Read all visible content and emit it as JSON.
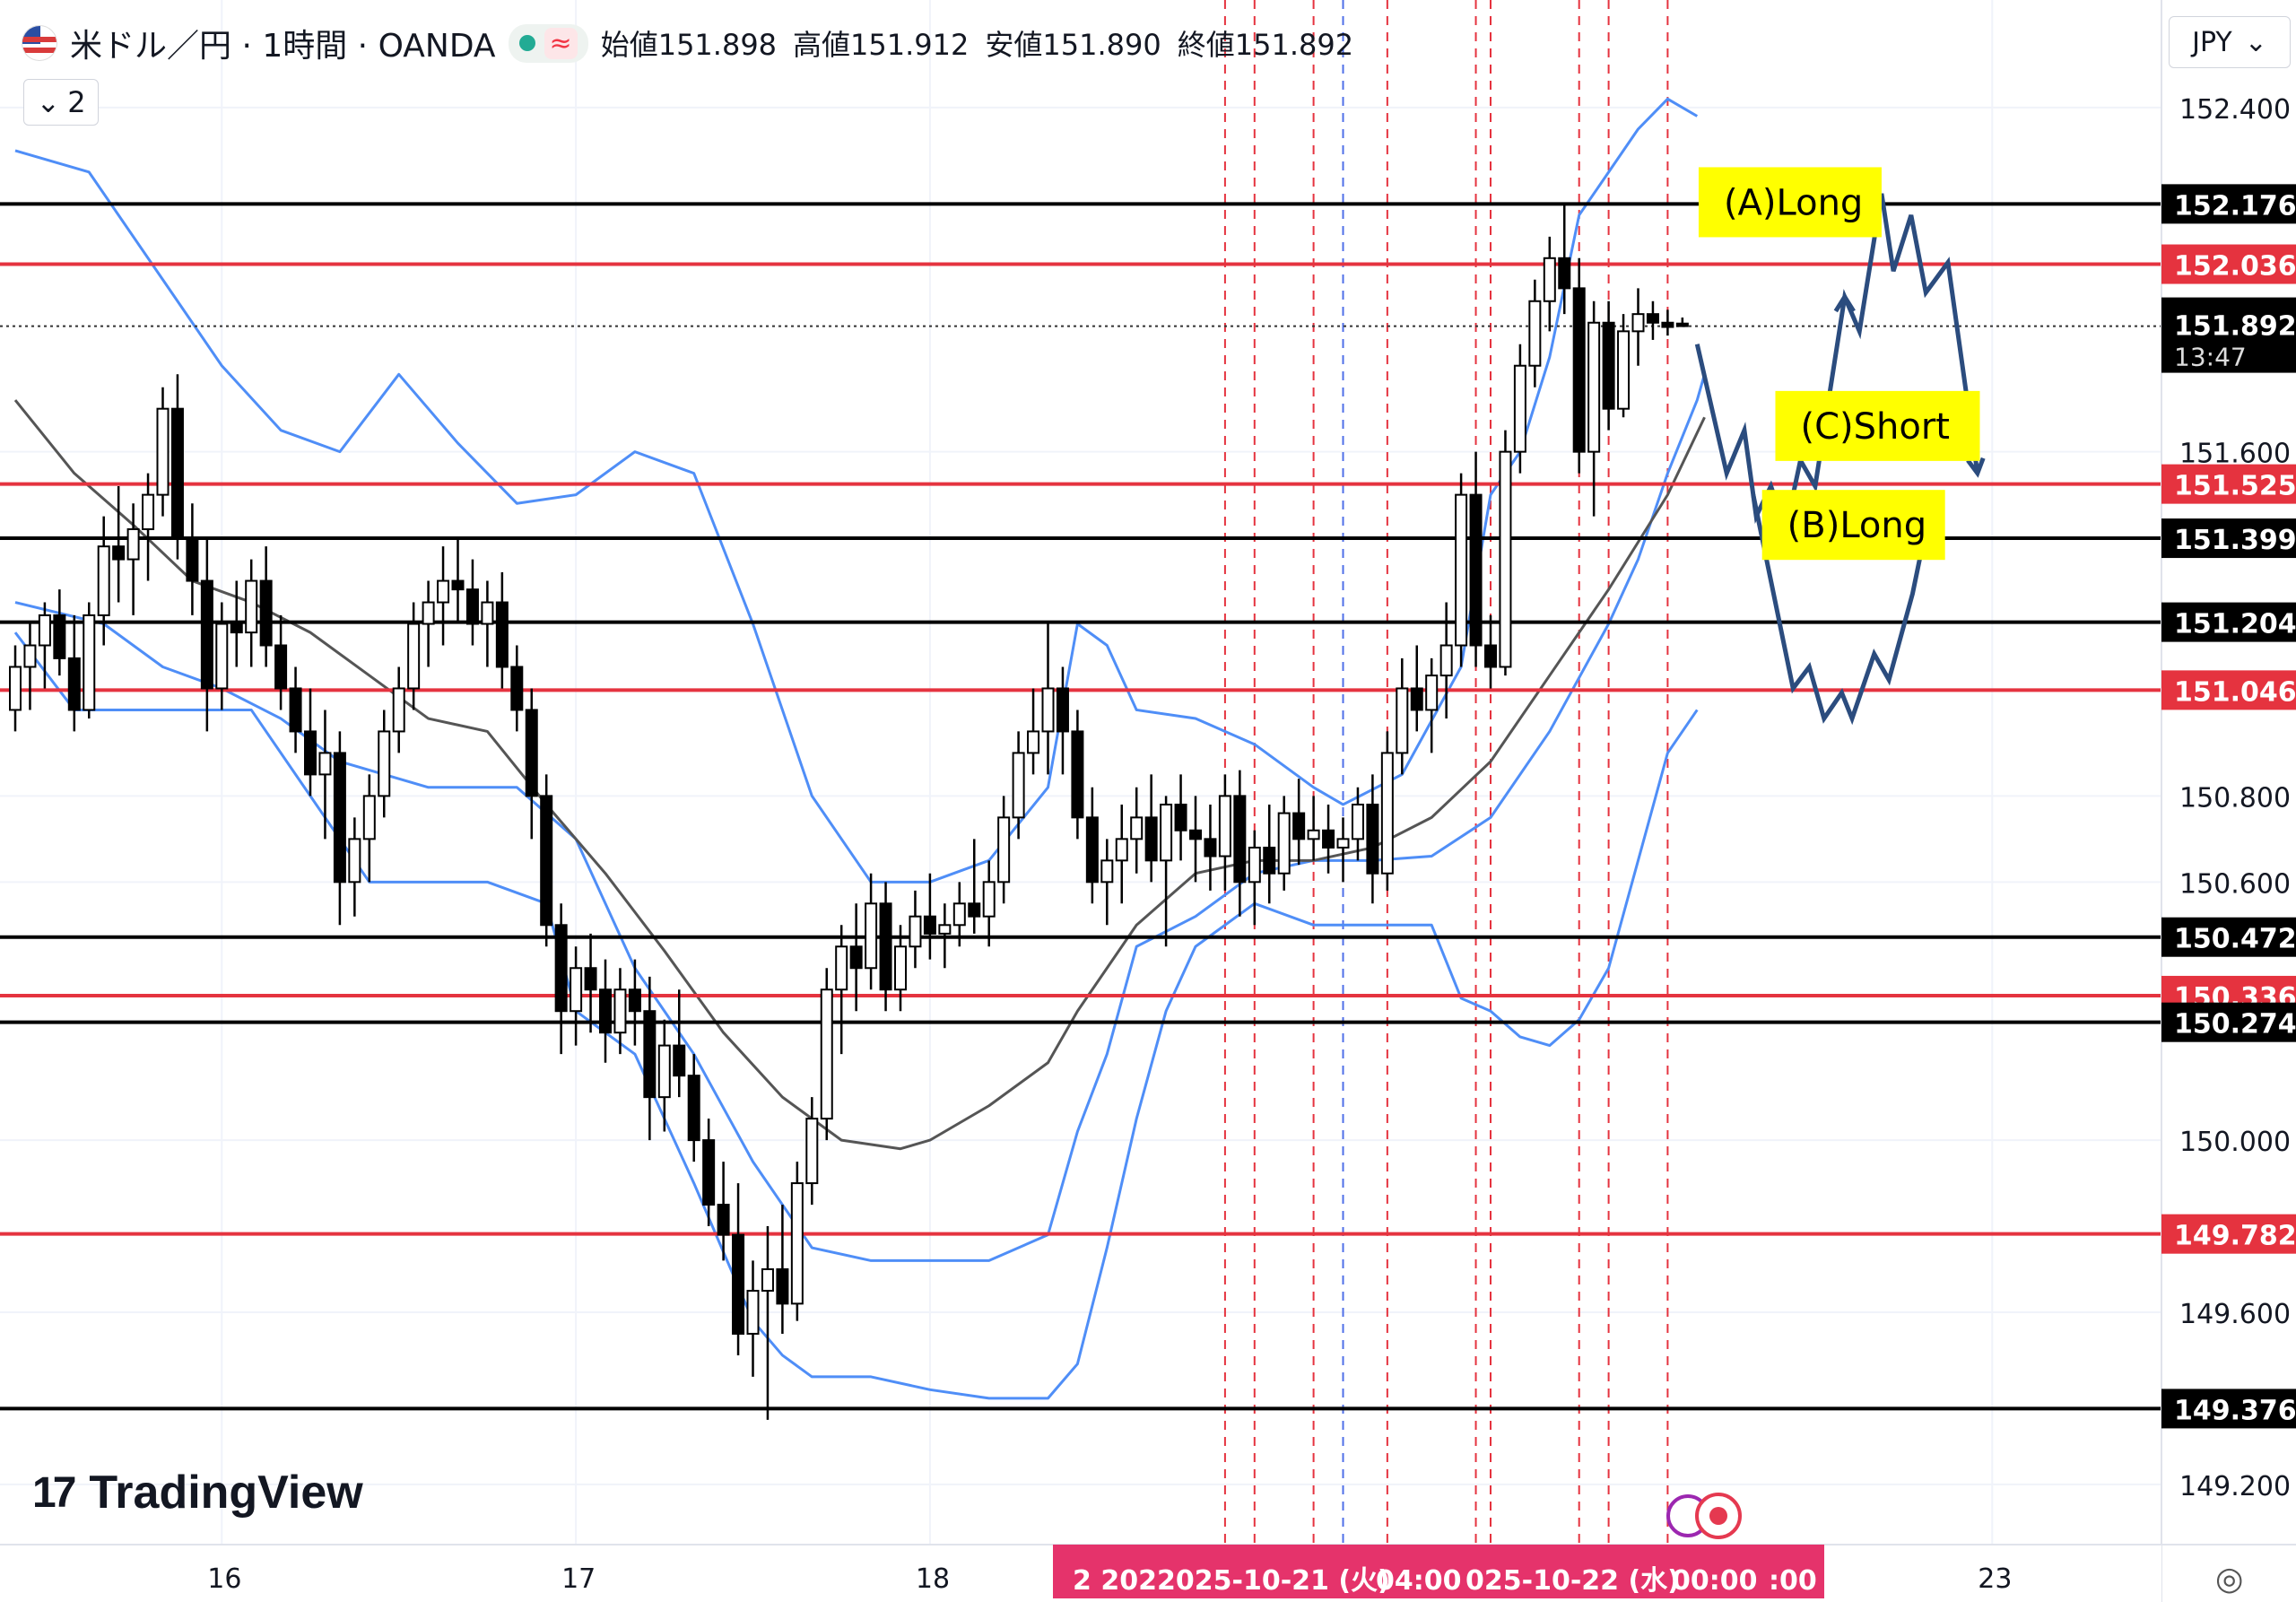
{
  "header": {
    "symbol": "米ドル／円 · 1時間 · OANDA",
    "open_label": "始値",
    "open": "151.898",
    "high_label": "高値",
    "high": "151.912",
    "low_label": "安値",
    "low": "151.890",
    "close_label": "終値",
    "close": "151.892",
    "indicator_count": "2",
    "currency": "JPY"
  },
  "branding": {
    "logo_text": "TradingView"
  },
  "colors": {
    "black_line": "#000000",
    "red_line": "#e5333f",
    "band": "#4f8ef7",
    "sma": "#555555",
    "projection": "#2b4c7e",
    "label_bg": "#ffff00",
    "time_bg": "#e5336b",
    "red_dash": "#e5333f",
    "blue_dash": "#4f6fe8"
  },
  "chart_data": {
    "type": "candlestick",
    "ylim": [
      149.06,
      152.65
    ],
    "x_axis_ticks": [
      {
        "index": 14,
        "label": "16"
      },
      {
        "index": 38,
        "label": "17"
      },
      {
        "index": 62,
        "label": "18"
      },
      {
        "index": 134,
        "label": "23"
      }
    ],
    "time_axis_highlight": [
      "2  202",
      "2025-10-21 (火)",
      "04:00",
      "025-10-22 (水)",
      "00:00",
      ":00"
    ],
    "y_axis_ticks": [
      152.4,
      151.6,
      150.8,
      150.6,
      150.0,
      149.6,
      149.2
    ],
    "horizontal_levels": [
      {
        "price": 152.176,
        "color": "black"
      },
      {
        "price": 152.036,
        "color": "red"
      },
      {
        "price": 151.525,
        "color": "red"
      },
      {
        "price": 151.399,
        "color": "black"
      },
      {
        "price": 151.204,
        "color": "black"
      },
      {
        "price": 151.046,
        "color": "red"
      },
      {
        "price": 150.472,
        "color": "black"
      },
      {
        "price": 150.336,
        "color": "red"
      },
      {
        "price": 150.274,
        "color": "black"
      },
      {
        "price": 149.782,
        "color": "red"
      },
      {
        "price": 149.376,
        "color": "black"
      }
    ],
    "current_price": {
      "price": 151.892,
      "countdown": "13:47"
    },
    "vertical_dashes": [
      {
        "index": 82,
        "color": "red"
      },
      {
        "index": 84,
        "color": "red"
      },
      {
        "index": 88,
        "color": "red"
      },
      {
        "index": 90,
        "color": "blue"
      },
      {
        "index": 93,
        "color": "red"
      },
      {
        "index": 99,
        "color": "red"
      },
      {
        "index": 100,
        "color": "red"
      },
      {
        "index": 106,
        "color": "red"
      },
      {
        "index": 108,
        "color": "red"
      },
      {
        "index": 112,
        "color": "red"
      }
    ],
    "candles": [
      [
        151.0,
        151.15,
        150.95,
        151.1
      ],
      [
        151.1,
        151.2,
        151.0,
        151.15
      ],
      [
        151.15,
        151.25,
        151.05,
        151.22
      ],
      [
        151.22,
        151.28,
        151.08,
        151.12
      ],
      [
        151.12,
        151.22,
        150.95,
        151.0
      ],
      [
        151.0,
        151.25,
        150.98,
        151.22
      ],
      [
        151.22,
        151.45,
        151.15,
        151.38
      ],
      [
        151.38,
        151.52,
        151.25,
        151.35
      ],
      [
        151.35,
        151.48,
        151.22,
        151.42
      ],
      [
        151.42,
        151.55,
        151.3,
        151.5
      ],
      [
        151.5,
        151.75,
        151.45,
        151.7
      ],
      [
        151.7,
        151.78,
        151.35,
        151.4
      ],
      [
        151.4,
        151.48,
        151.22,
        151.3
      ],
      [
        151.3,
        151.4,
        150.95,
        151.05
      ],
      [
        151.05,
        151.25,
        151.0,
        151.2
      ],
      [
        151.2,
        151.3,
        151.1,
        151.18
      ],
      [
        151.18,
        151.35,
        151.1,
        151.3
      ],
      [
        151.3,
        151.38,
        151.1,
        151.15
      ],
      [
        151.15,
        151.22,
        151.0,
        151.05
      ],
      [
        151.05,
        151.1,
        150.9,
        150.95
      ],
      [
        150.95,
        151.05,
        150.8,
        150.85
      ],
      [
        150.85,
        151.0,
        150.7,
        150.9
      ],
      [
        150.9,
        150.95,
        150.5,
        150.6
      ],
      [
        150.6,
        150.75,
        150.52,
        150.7
      ],
      [
        150.7,
        150.85,
        150.6,
        150.8
      ],
      [
        150.8,
        151.0,
        150.75,
        150.95
      ],
      [
        150.95,
        151.1,
        150.9,
        151.05
      ],
      [
        151.05,
        151.25,
        151.0,
        151.2
      ],
      [
        151.2,
        151.3,
        151.1,
        151.25
      ],
      [
        151.25,
        151.38,
        151.15,
        151.3
      ],
      [
        151.3,
        151.4,
        151.2,
        151.28
      ],
      [
        151.28,
        151.35,
        151.15,
        151.2
      ],
      [
        151.2,
        151.3,
        151.1,
        151.25
      ],
      [
        151.25,
        151.32,
        151.05,
        151.1
      ],
      [
        151.1,
        151.15,
        150.95,
        151.0
      ],
      [
        151.0,
        151.05,
        150.7,
        150.8
      ],
      [
        150.8,
        150.85,
        150.45,
        150.5
      ],
      [
        150.5,
        150.55,
        150.2,
        150.3
      ],
      [
        150.3,
        150.45,
        150.22,
        150.4
      ],
      [
        150.4,
        150.48,
        150.25,
        150.35
      ],
      [
        150.35,
        150.42,
        150.18,
        150.25
      ],
      [
        150.25,
        150.4,
        150.2,
        150.35
      ],
      [
        150.35,
        150.42,
        150.22,
        150.3
      ],
      [
        150.3,
        150.38,
        150.0,
        150.1
      ],
      [
        150.1,
        150.28,
        150.02,
        150.22
      ],
      [
        150.22,
        150.35,
        150.1,
        150.15
      ],
      [
        150.15,
        150.2,
        149.95,
        150.0
      ],
      [
        150.0,
        150.05,
        149.8,
        149.85
      ],
      [
        149.85,
        149.95,
        149.72,
        149.78
      ],
      [
        149.78,
        149.9,
        149.5,
        149.55
      ],
      [
        149.55,
        149.72,
        149.45,
        149.65
      ],
      [
        149.65,
        149.8,
        149.35,
        149.7
      ],
      [
        149.7,
        149.85,
        149.55,
        149.62
      ],
      [
        149.62,
        149.95,
        149.58,
        149.9
      ],
      [
        149.9,
        150.1,
        149.85,
        150.05
      ],
      [
        150.05,
        150.4,
        150.0,
        150.35
      ],
      [
        150.35,
        150.5,
        150.2,
        150.45
      ],
      [
        150.45,
        150.55,
        150.3,
        150.4
      ],
      [
        150.4,
        150.62,
        150.35,
        150.55
      ],
      [
        150.55,
        150.6,
        150.3,
        150.35
      ],
      [
        150.35,
        150.5,
        150.3,
        150.45
      ],
      [
        150.45,
        150.58,
        150.4,
        150.52
      ],
      [
        150.52,
        150.62,
        150.42,
        150.48
      ],
      [
        150.48,
        150.55,
        150.4,
        150.5
      ],
      [
        150.5,
        150.6,
        150.45,
        150.55
      ],
      [
        150.55,
        150.7,
        150.48,
        150.52
      ],
      [
        150.52,
        150.65,
        150.45,
        150.6
      ],
      [
        150.6,
        150.8,
        150.55,
        150.75
      ],
      [
        150.75,
        150.95,
        150.7,
        150.9
      ],
      [
        150.9,
        151.05,
        150.85,
        150.95
      ],
      [
        150.95,
        151.2,
        150.85,
        151.05
      ],
      [
        151.05,
        151.1,
        150.85,
        150.95
      ],
      [
        150.95,
        151.0,
        150.7,
        150.75
      ],
      [
        150.75,
        150.82,
        150.55,
        150.6
      ],
      [
        150.6,
        150.7,
        150.5,
        150.65
      ],
      [
        150.65,
        150.78,
        150.55,
        150.7
      ],
      [
        150.7,
        150.82,
        150.62,
        150.75
      ],
      [
        150.75,
        150.85,
        150.6,
        150.65
      ],
      [
        150.65,
        150.8,
        150.45,
        150.78
      ],
      [
        150.78,
        150.85,
        150.65,
        150.72
      ],
      [
        150.72,
        150.8,
        150.6,
        150.7
      ],
      [
        150.7,
        150.78,
        150.58,
        150.66
      ],
      [
        150.66,
        150.85,
        150.58,
        150.8
      ],
      [
        150.8,
        150.86,
        150.52,
        150.6
      ],
      [
        150.6,
        150.72,
        150.5,
        150.68
      ],
      [
        150.68,
        150.78,
        150.55,
        150.62
      ],
      [
        150.62,
        150.8,
        150.58,
        150.76
      ],
      [
        150.76,
        150.84,
        150.64,
        150.7
      ],
      [
        150.7,
        150.8,
        150.65,
        150.72
      ],
      [
        150.72,
        150.78,
        150.62,
        150.68
      ],
      [
        150.68,
        150.75,
        150.6,
        150.7
      ],
      [
        150.7,
        150.82,
        150.65,
        150.78
      ],
      [
        150.78,
        150.85,
        150.55,
        150.62
      ],
      [
        150.62,
        150.95,
        150.58,
        150.9
      ],
      [
        150.9,
        151.12,
        150.85,
        151.05
      ],
      [
        151.05,
        151.15,
        150.95,
        151.0
      ],
      [
        151.0,
        151.12,
        150.9,
        151.08
      ],
      [
        151.08,
        151.25,
        150.98,
        151.15
      ],
      [
        151.15,
        151.55,
        151.1,
        151.5
      ],
      [
        151.5,
        151.6,
        151.1,
        151.15
      ],
      [
        151.15,
        151.22,
        151.05,
        151.1
      ],
      [
        151.1,
        151.65,
        151.08,
        151.6
      ],
      [
        151.6,
        151.85,
        151.55,
        151.8
      ],
      [
        151.8,
        152.0,
        151.75,
        151.95
      ],
      [
        151.95,
        152.1,
        151.88,
        152.05
      ],
      [
        152.05,
        152.18,
        151.92,
        151.98
      ],
      [
        151.98,
        152.05,
        151.55,
        151.6
      ],
      [
        151.6,
        151.95,
        151.45,
        151.9
      ],
      [
        151.9,
        151.95,
        151.65,
        151.7
      ],
      [
        151.7,
        151.92,
        151.68,
        151.88
      ],
      [
        151.88,
        151.98,
        151.8,
        151.92
      ],
      [
        151.92,
        151.95,
        151.86,
        151.9
      ],
      [
        151.9,
        151.93,
        151.87,
        151.89
      ],
      [
        151.898,
        151.912,
        151.89,
        151.892
      ]
    ],
    "band_upper": [
      [
        0,
        152.3
      ],
      [
        5,
        152.25
      ],
      [
        10,
        152.0
      ],
      [
        14,
        151.8
      ],
      [
        18,
        151.65
      ],
      [
        22,
        151.6
      ],
      [
        26,
        151.78
      ],
      [
        30,
        151.62
      ],
      [
        34,
        151.48
      ],
      [
        38,
        151.5
      ],
      [
        42,
        151.6
      ],
      [
        46,
        151.55
      ],
      [
        50,
        151.2
      ],
      [
        54,
        150.8
      ],
      [
        58,
        150.6
      ],
      [
        62,
        150.6
      ],
      [
        66,
        150.65
      ],
      [
        70,
        150.82
      ],
      [
        72,
        151.2
      ],
      [
        74,
        151.15
      ],
      [
        76,
        151.0
      ],
      [
        80,
        150.98
      ],
      [
        84,
        150.92
      ],
      [
        88,
        150.82
      ],
      [
        90,
        150.78
      ],
      [
        94,
        150.85
      ],
      [
        98,
        151.1
      ],
      [
        100,
        151.5
      ],
      [
        102,
        151.6
      ],
      [
        104,
        151.82
      ],
      [
        106,
        152.15
      ],
      [
        108,
        152.25
      ],
      [
        110,
        152.35
      ],
      [
        112,
        152.42
      ],
      [
        114,
        152.38
      ]
    ],
    "band_lower": [
      [
        0,
        151.18
      ],
      [
        4,
        151.0
      ],
      [
        8,
        151.0
      ],
      [
        12,
        151.0
      ],
      [
        16,
        151.0
      ],
      [
        20,
        150.8
      ],
      [
        24,
        150.6
      ],
      [
        28,
        150.6
      ],
      [
        32,
        150.6
      ],
      [
        36,
        150.55
      ],
      [
        38,
        150.3
      ],
      [
        42,
        150.2
      ],
      [
        46,
        149.9
      ],
      [
        50,
        149.58
      ],
      [
        52,
        149.5
      ],
      [
        54,
        149.45
      ],
      [
        58,
        149.45
      ],
      [
        62,
        149.42
      ],
      [
        66,
        149.4
      ],
      [
        70,
        149.4
      ],
      [
        72,
        149.48
      ],
      [
        74,
        149.75
      ],
      [
        76,
        150.05
      ],
      [
        78,
        150.3
      ],
      [
        80,
        150.45
      ],
      [
        84,
        150.55
      ],
      [
        88,
        150.5
      ],
      [
        92,
        150.5
      ],
      [
        96,
        150.5
      ],
      [
        98,
        150.33
      ],
      [
        100,
        150.3
      ],
      [
        102,
        150.24
      ],
      [
        104,
        150.22
      ],
      [
        106,
        150.28
      ],
      [
        108,
        150.4
      ],
      [
        110,
        150.65
      ],
      [
        112,
        150.9
      ],
      [
        114,
        151.0
      ]
    ],
    "band_upper2": [
      [
        0,
        151.25
      ],
      [
        6,
        151.2
      ],
      [
        10,
        151.1
      ],
      [
        14,
        151.05
      ],
      [
        18,
        150.98
      ],
      [
        22,
        150.88
      ],
      [
        28,
        150.82
      ],
      [
        34,
        150.82
      ],
      [
        38,
        150.7
      ],
      [
        42,
        150.4
      ],
      [
        46,
        150.2
      ],
      [
        50,
        149.95
      ],
      [
        54,
        149.75
      ],
      [
        58,
        149.72
      ],
      [
        62,
        149.72
      ],
      [
        66,
        149.72
      ],
      [
        70,
        149.78
      ],
      [
        72,
        150.02
      ],
      [
        74,
        150.2
      ],
      [
        76,
        150.45
      ],
      [
        80,
        150.52
      ],
      [
        84,
        150.62
      ],
      [
        88,
        150.65
      ],
      [
        92,
        150.65
      ],
      [
        96,
        150.66
      ],
      [
        100,
        150.75
      ],
      [
        104,
        150.95
      ],
      [
        108,
        151.2
      ],
      [
        110,
        151.35
      ],
      [
        112,
        151.55
      ],
      [
        114,
        151.72
      ],
      [
        114.5,
        151.78
      ]
    ],
    "sma": [
      [
        0,
        151.72
      ],
      [
        4,
        151.55
      ],
      [
        8,
        151.43
      ],
      [
        12,
        151.3
      ],
      [
        16,
        151.25
      ],
      [
        20,
        151.18
      ],
      [
        24,
        151.08
      ],
      [
        28,
        150.98
      ],
      [
        32,
        150.95
      ],
      [
        36,
        150.78
      ],
      [
        40,
        150.62
      ],
      [
        44,
        150.44
      ],
      [
        48,
        150.25
      ],
      [
        52,
        150.1
      ],
      [
        56,
        150.0
      ],
      [
        60,
        149.98
      ],
      [
        62,
        150.0
      ],
      [
        66,
        150.08
      ],
      [
        70,
        150.18
      ],
      [
        72,
        150.3
      ],
      [
        74,
        150.4
      ],
      [
        76,
        150.5
      ],
      [
        80,
        150.62
      ],
      [
        84,
        150.65
      ],
      [
        88,
        150.65
      ],
      [
        92,
        150.68
      ],
      [
        96,
        150.75
      ],
      [
        100,
        150.88
      ],
      [
        104,
        151.08
      ],
      [
        108,
        151.28
      ],
      [
        112,
        151.5
      ],
      [
        114.5,
        151.68
      ]
    ],
    "projection_path": [
      [
        114,
        151.85
      ],
      [
        116,
        151.55
      ],
      [
        117.2,
        151.65
      ],
      [
        118,
        151.45
      ],
      [
        119,
        151.52
      ],
      [
        120,
        151.42
      ],
      [
        121,
        151.58
      ],
      [
        122,
        151.52
      ],
      [
        124,
        151.96
      ],
      [
        125,
        151.88
      ],
      [
        126.5,
        152.2
      ],
      [
        127.3,
        152.02
      ],
      [
        128.5,
        152.15
      ],
      [
        129.5,
        151.97
      ],
      [
        131,
        152.04
      ],
      [
        133,
        151.55
      ]
    ],
    "projection_path2": [
      [
        117.8,
        151.5
      ],
      [
        120.5,
        151.05
      ],
      [
        121.6,
        151.1
      ],
      [
        122.6,
        150.98
      ],
      [
        123.8,
        151.04
      ],
      [
        124.5,
        150.98
      ],
      [
        126,
        151.13
      ],
      [
        127,
        151.07
      ],
      [
        128.6,
        151.27
      ],
      [
        129.5,
        151.42
      ]
    ],
    "annotations": [
      {
        "text": "(A)Long",
        "index": 114.1,
        "price": 152.18
      },
      {
        "text": "(C)Short",
        "index": 119.3,
        "price": 151.66
      },
      {
        "text": "(B)Long",
        "index": 118.4,
        "price": 151.43
      }
    ],
    "date_markers": [
      "2025-10-21 (火)",
      "2025-10-22 (水)"
    ]
  }
}
